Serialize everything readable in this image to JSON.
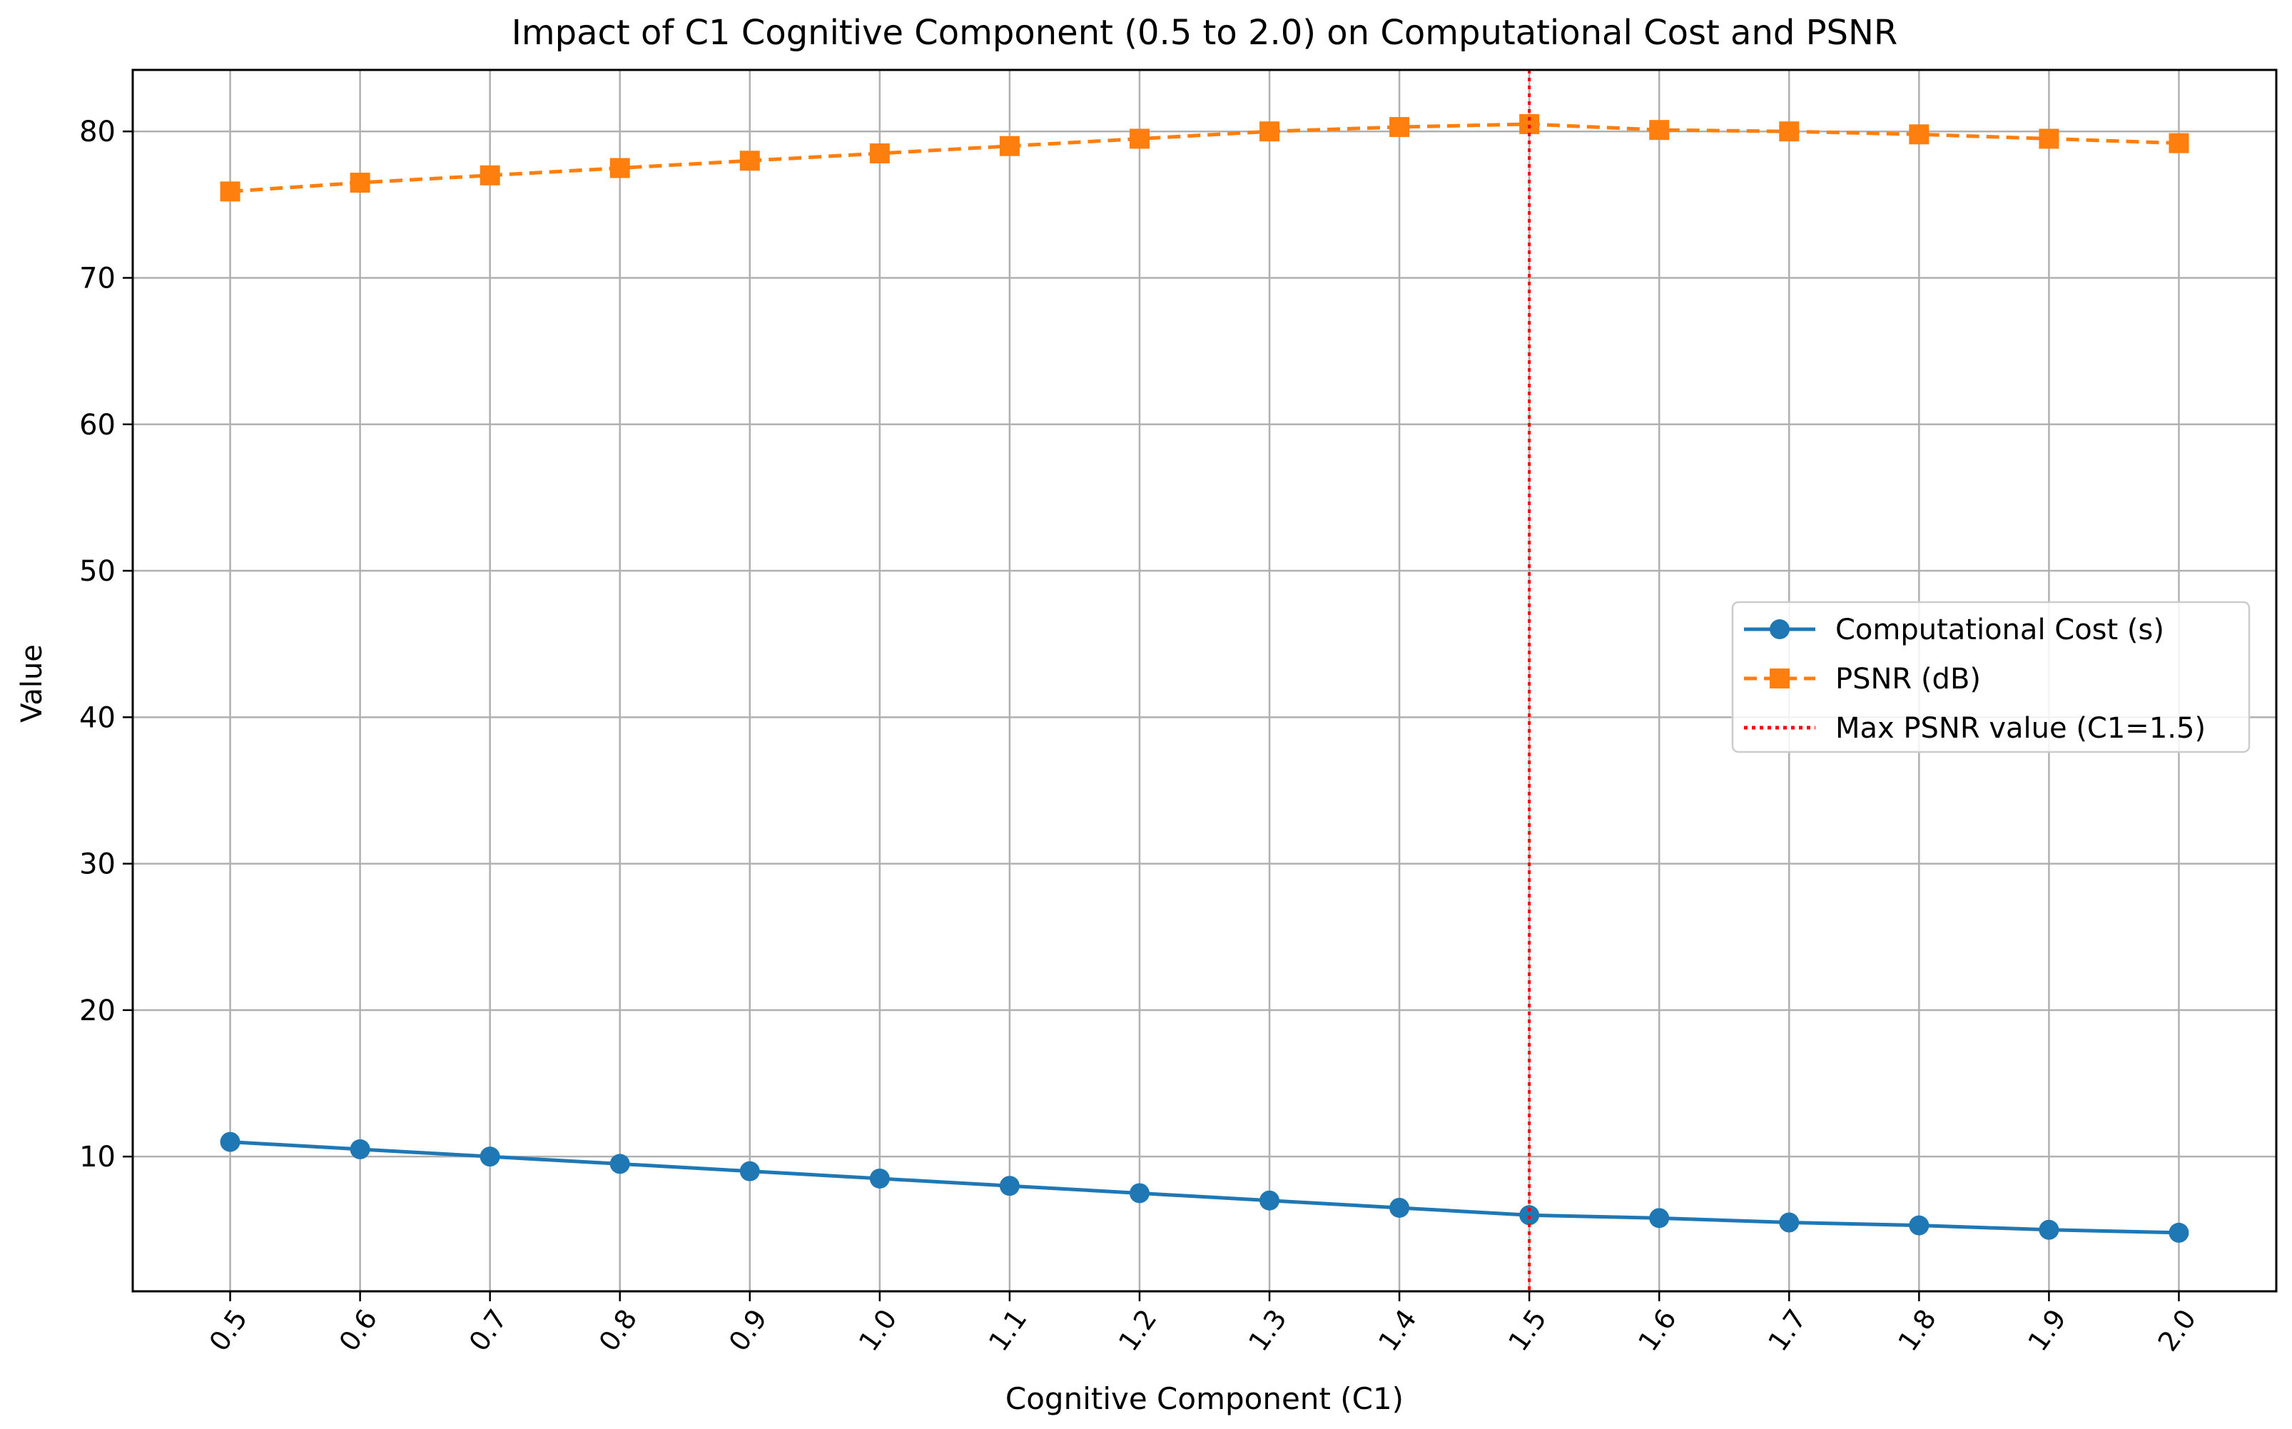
{
  "chart_data": {
    "type": "line",
    "title": "Impact of C1 Cognitive Component (0.5 to 2.0) on Computational Cost and PSNR",
    "xlabel": "Cognitive Component (C1)",
    "ylabel": "Value",
    "x": [
      0.5,
      0.6,
      0.7,
      0.8,
      0.9,
      1.0,
      1.1,
      1.2,
      1.3,
      1.4,
      1.5,
      1.6,
      1.7,
      1.8,
      1.9,
      2.0
    ],
    "x_tick_labels": [
      "0.5",
      "0.6",
      "0.7",
      "0.8",
      "0.9",
      "1.0",
      "1.1",
      "1.2",
      "1.3",
      "1.4",
      "1.5",
      "1.6",
      "1.7",
      "1.8",
      "1.9",
      "2.0"
    ],
    "y_ticks": [
      10,
      20,
      30,
      40,
      50,
      60,
      70,
      80
    ],
    "xlim": [
      0.425,
      2.075
    ],
    "ylim": [
      0.8,
      84.2
    ],
    "grid": true,
    "legend_position": "center-right",
    "series": [
      {
        "name": "Computational Cost (s)",
        "color": "#1f77b4",
        "line_style": "solid",
        "marker": "circle",
        "values": [
          11.0,
          10.5,
          10.0,
          9.5,
          9.0,
          8.5,
          8.0,
          7.5,
          7.0,
          6.5,
          6.0,
          5.8,
          5.5,
          5.3,
          5.0,
          4.8
        ]
      },
      {
        "name": "PSNR (dB)",
        "color": "#ff7f0e",
        "line_style": "dashed",
        "marker": "square",
        "values": [
          75.9,
          76.5,
          77.0,
          77.5,
          78.0,
          78.5,
          79.0,
          79.5,
          80.0,
          80.3,
          80.5,
          80.1,
          80.0,
          79.8,
          79.5,
          79.2
        ]
      }
    ],
    "vlines": [
      {
        "name": "Max PSNR value (C1=1.5)",
        "x": 1.5,
        "color": "#ff0000",
        "line_style": "dotted"
      }
    ]
  }
}
